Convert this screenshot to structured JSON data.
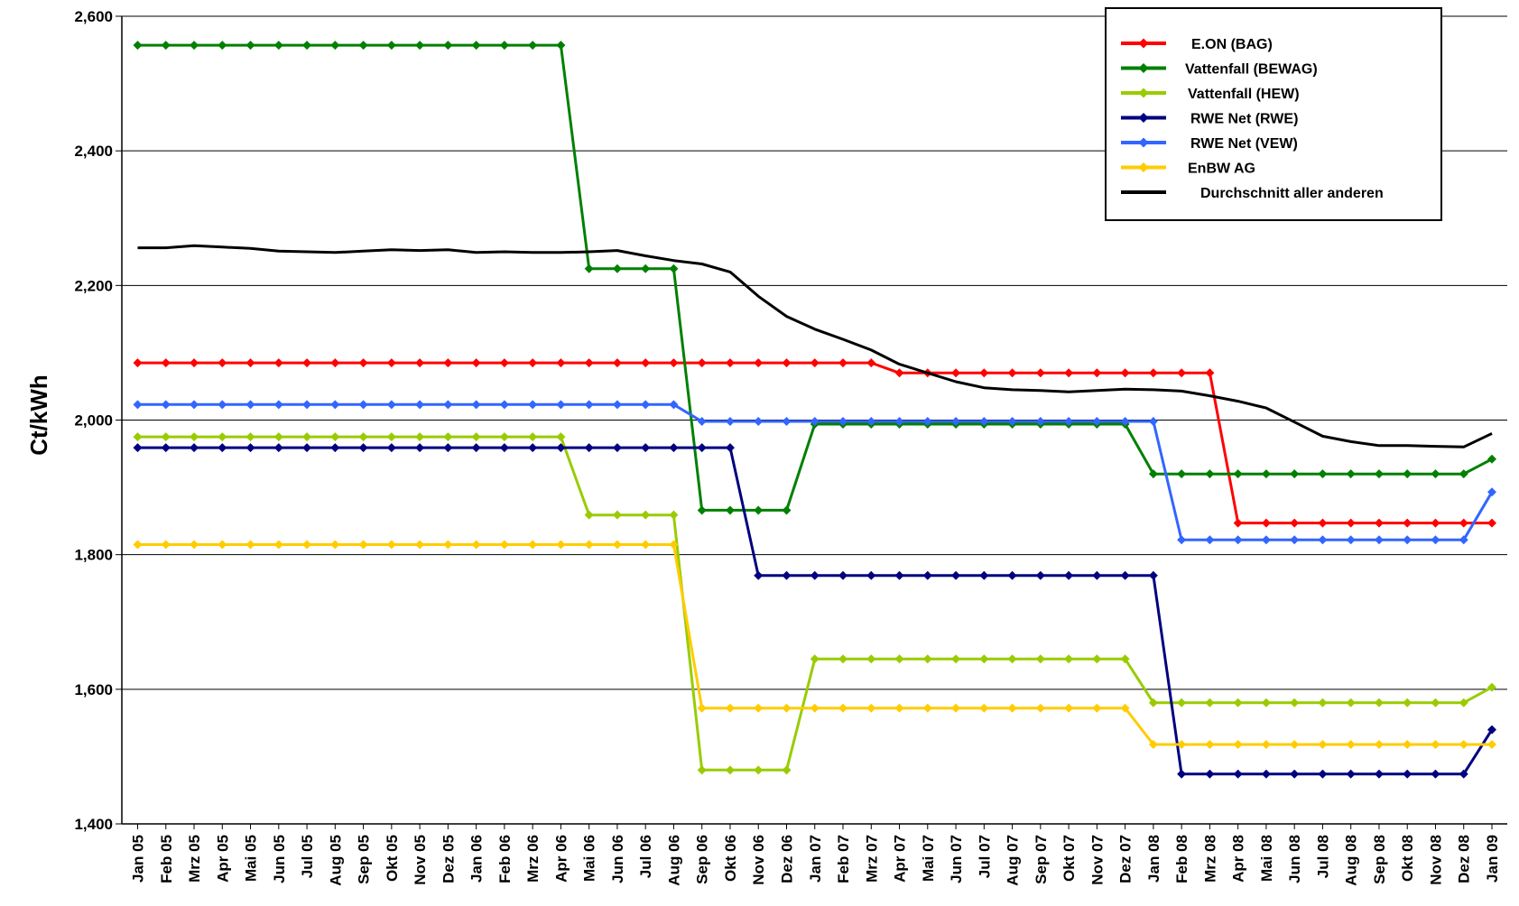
{
  "chart_data": {
    "type": "line",
    "title": "",
    "xlabel": "",
    "ylabel": "Ct/kWh",
    "ylim": [
      1.4,
      2.6
    ],
    "y_ticks": [
      1.4,
      1.6,
      1.8,
      2.0,
      2.2,
      2.4,
      2.6
    ],
    "y_tick_labels": [
      "1,400",
      "1,600",
      "1,800",
      "2,000",
      "2,200",
      "2,400",
      "2,600"
    ],
    "grid": "horizontal",
    "legend_position": "top-right",
    "categories": [
      "Jan 05",
      "Feb 05",
      "Mrz 05",
      "Apr 05",
      "Mai 05",
      "Jun 05",
      "Jul 05",
      "Aug 05",
      "Sep 05",
      "Okt 05",
      "Nov 05",
      "Dez 05",
      "Jan 06",
      "Feb 06",
      "Mrz 06",
      "Apr 06",
      "Mai 06",
      "Jun 06",
      "Jul 06",
      "Aug 06",
      "Sep 06",
      "Okt 06",
      "Nov 06",
      "Dez 06",
      "Jan 07",
      "Feb 07",
      "Mrz 07",
      "Apr 07",
      "Mai 07",
      "Jun 07",
      "Jul 07",
      "Aug 07",
      "Sep 07",
      "Okt 07",
      "Nov 07",
      "Dez 07",
      "Jan 08",
      "Feb 08",
      "Mrz 08",
      "Apr 08",
      "Mai 08",
      "Jun 08",
      "Jul 08",
      "Aug 08",
      "Sep 08",
      "Okt 08",
      "Nov 08",
      "Dez 08",
      "Jan 09"
    ],
    "series": [
      {
        "name": "E.ON (BAG)",
        "color": "#ff0000",
        "markers": true,
        "values": [
          2.085,
          2.085,
          2.085,
          2.085,
          2.085,
          2.085,
          2.085,
          2.085,
          2.085,
          2.085,
          2.085,
          2.085,
          2.085,
          2.085,
          2.085,
          2.085,
          2.085,
          2.085,
          2.085,
          2.085,
          2.085,
          2.085,
          2.085,
          2.085,
          2.085,
          2.085,
          2.085,
          2.07,
          2.07,
          2.07,
          2.07,
          2.07,
          2.07,
          2.07,
          2.07,
          2.07,
          2.07,
          2.07,
          2.07,
          1.847,
          1.847,
          1.847,
          1.847,
          1.847,
          1.847,
          1.847,
          1.847,
          1.847,
          1.847
        ]
      },
      {
        "name": "Vattenfall (BEWAG)",
        "color": "#008000",
        "markers": true,
        "values": [
          2.557,
          2.557,
          2.557,
          2.557,
          2.557,
          2.557,
          2.557,
          2.557,
          2.557,
          2.557,
          2.557,
          2.557,
          2.557,
          2.557,
          2.557,
          2.557,
          2.225,
          2.225,
          2.225,
          2.225,
          1.866,
          1.866,
          1.866,
          1.866,
          1.994,
          1.994,
          1.994,
          1.994,
          1.994,
          1.994,
          1.994,
          1.994,
          1.994,
          1.994,
          1.994,
          1.994,
          1.92,
          1.92,
          1.92,
          1.92,
          1.92,
          1.92,
          1.92,
          1.92,
          1.92,
          1.92,
          1.92,
          1.92,
          1.942
        ]
      },
      {
        "name": "Vattenfall (HEW)",
        "color": "#99cc00",
        "markers": true,
        "values": [
          1.975,
          1.975,
          1.975,
          1.975,
          1.975,
          1.975,
          1.975,
          1.975,
          1.975,
          1.975,
          1.975,
          1.975,
          1.975,
          1.975,
          1.975,
          1.975,
          1.859,
          1.859,
          1.859,
          1.859,
          1.48,
          1.48,
          1.48,
          1.48,
          1.645,
          1.645,
          1.645,
          1.645,
          1.645,
          1.645,
          1.645,
          1.645,
          1.645,
          1.645,
          1.645,
          1.645,
          1.58,
          1.58,
          1.58,
          1.58,
          1.58,
          1.58,
          1.58,
          1.58,
          1.58,
          1.58,
          1.58,
          1.58,
          1.603
        ]
      },
      {
        "name": "RWE Net (RWE)",
        "color": "#000080",
        "markers": true,
        "values": [
          1.959,
          1.959,
          1.959,
          1.959,
          1.959,
          1.959,
          1.959,
          1.959,
          1.959,
          1.959,
          1.959,
          1.959,
          1.959,
          1.959,
          1.959,
          1.959,
          1.959,
          1.959,
          1.959,
          1.959,
          1.959,
          1.959,
          1.769,
          1.769,
          1.769,
          1.769,
          1.769,
          1.769,
          1.769,
          1.769,
          1.769,
          1.769,
          1.769,
          1.769,
          1.769,
          1.769,
          1.769,
          1.474,
          1.474,
          1.474,
          1.474,
          1.474,
          1.474,
          1.474,
          1.474,
          1.474,
          1.474,
          1.474,
          1.54
        ]
      },
      {
        "name": "RWE Net (VEW)",
        "color": "#3366ff",
        "markers": true,
        "values": [
          2.023,
          2.023,
          2.023,
          2.023,
          2.023,
          2.023,
          2.023,
          2.023,
          2.023,
          2.023,
          2.023,
          2.023,
          2.023,
          2.023,
          2.023,
          2.023,
          2.023,
          2.023,
          2.023,
          2.023,
          1.998,
          1.998,
          1.998,
          1.998,
          1.998,
          1.998,
          1.998,
          1.998,
          1.998,
          1.998,
          1.998,
          1.998,
          1.998,
          1.998,
          1.998,
          1.998,
          1.998,
          1.822,
          1.822,
          1.822,
          1.822,
          1.822,
          1.822,
          1.822,
          1.822,
          1.822,
          1.822,
          1.822,
          1.893
        ]
      },
      {
        "name": "EnBW AG",
        "color": "#ffcc00",
        "markers": true,
        "values": [
          1.815,
          1.815,
          1.815,
          1.815,
          1.815,
          1.815,
          1.815,
          1.815,
          1.815,
          1.815,
          1.815,
          1.815,
          1.815,
          1.815,
          1.815,
          1.815,
          1.815,
          1.815,
          1.815,
          1.815,
          1.572,
          1.572,
          1.572,
          1.572,
          1.572,
          1.572,
          1.572,
          1.572,
          1.572,
          1.572,
          1.572,
          1.572,
          1.572,
          1.572,
          1.572,
          1.572,
          1.518,
          1.518,
          1.518,
          1.518,
          1.518,
          1.518,
          1.518,
          1.518,
          1.518,
          1.518,
          1.518,
          1.518,
          1.518
        ]
      },
      {
        "name": "Durchschnitt aller anderen",
        "color": "#000000",
        "markers": false,
        "values": [
          2.256,
          2.256,
          2.259,
          2.257,
          2.255,
          2.251,
          2.25,
          2.249,
          2.251,
          2.253,
          2.252,
          2.253,
          2.249,
          2.25,
          2.249,
          2.249,
          2.25,
          2.252,
          2.244,
          2.237,
          2.232,
          2.22,
          2.184,
          2.154,
          2.135,
          2.12,
          2.104,
          2.083,
          2.07,
          2.057,
          2.048,
          2.045,
          2.044,
          2.042,
          2.044,
          2.046,
          2.045,
          2.043,
          2.036,
          2.028,
          2.018,
          1.997,
          1.976,
          1.968,
          1.962,
          1.962,
          1.961,
          1.96,
          1.98
        ]
      }
    ]
  }
}
